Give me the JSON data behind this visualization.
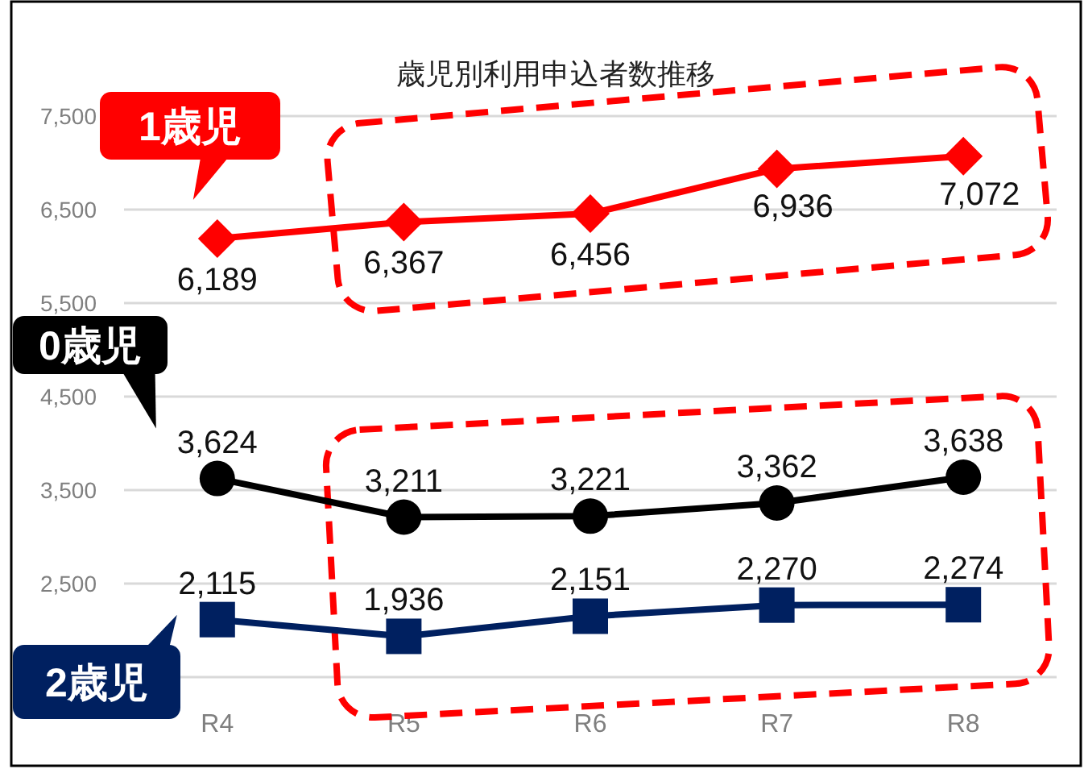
{
  "chart_data": {
    "type": "line",
    "title": "歳児別利用申込者数推移",
    "categories": [
      "R4",
      "R5",
      "R6",
      "R7",
      "R8"
    ],
    "ylim": [
      1500,
      7500
    ],
    "yticks": [
      {
        "value": 1500,
        "label": null
      },
      {
        "value": 2500,
        "label": "2,500"
      },
      {
        "value": 3500,
        "label": "3,500"
      },
      {
        "value": 4500,
        "label": "4,500"
      },
      {
        "value": 5500,
        "label": "5,500"
      },
      {
        "value": 6500,
        "label": "6,500"
      },
      {
        "value": 7500,
        "label": "7,500"
      }
    ],
    "grid": "y",
    "series": [
      {
        "name": "1歳児",
        "color": "#ff0000",
        "marker": "diamond",
        "values": [
          6189,
          6367,
          6456,
          6936,
          7072
        ],
        "value_labels": [
          "6,189",
          "6,367",
          "6,456",
          "6,936",
          "7,072"
        ]
      },
      {
        "name": "0歳児",
        "color": "#000000",
        "marker": "circle",
        "values": [
          3624,
          3211,
          3221,
          3362,
          3638
        ],
        "value_labels": [
          "3,624",
          "3,211",
          "3,221",
          "3,362",
          "3,638"
        ]
      },
      {
        "name": "2歳児",
        "color": "#002060",
        "marker": "square",
        "values": [
          2115,
          1936,
          2151,
          2270,
          2274
        ],
        "value_labels": [
          "2,115",
          "1,936",
          "2,151",
          "2,270",
          "2,274"
        ]
      }
    ]
  }
}
